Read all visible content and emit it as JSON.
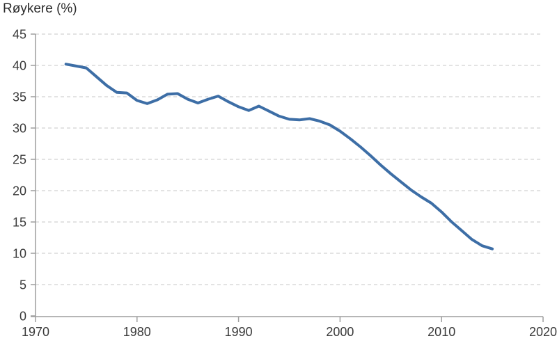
{
  "chart": {
    "title": "Røykere (%)"
  },
  "chart_data": {
    "type": "line",
    "title": "Røykere (%)",
    "xlabel": "",
    "ylabel": "Røykere (%)",
    "legend": "none",
    "grid": "horizontal-dashed",
    "xlim": [
      1970,
      2020
    ],
    "ylim": [
      0,
      45
    ],
    "x_ticks": [
      1970,
      1980,
      1990,
      2000,
      2010,
      2020
    ],
    "y_ticks": [
      0,
      5,
      10,
      15,
      20,
      25,
      30,
      35,
      40,
      45
    ],
    "series_name": "Røykere (%)",
    "x": [
      1973,
      1974,
      1975,
      1976,
      1977,
      1978,
      1979,
      1980,
      1981,
      1982,
      1983,
      1984,
      1985,
      1986,
      1987,
      1988,
      1989,
      1990,
      1991,
      1992,
      1993,
      1994,
      1995,
      1996,
      1997,
      1998,
      1999,
      2000,
      2001,
      2002,
      2003,
      2004,
      2005,
      2006,
      2007,
      2008,
      2009,
      2010,
      2011,
      2012,
      2013,
      2014,
      2015
    ],
    "values": [
      40.2,
      39.9,
      39.6,
      38.2,
      36.8,
      35.7,
      35.6,
      34.4,
      33.9,
      34.5,
      35.4,
      35.5,
      34.6,
      34.0,
      34.6,
      35.1,
      34.2,
      33.4,
      32.8,
      33.5,
      32.7,
      31.9,
      31.4,
      31.3,
      31.5,
      31.1,
      30.5,
      29.5,
      28.3,
      27.0,
      25.6,
      24.1,
      22.7,
      21.4,
      20.1,
      19.0,
      18.0,
      16.6,
      15.0,
      13.6,
      12.2,
      11.2,
      10.7
    ],
    "colors": {
      "line": "#3d6ea6",
      "grid": "#d2d2d2",
      "axis": "#9e9e9e",
      "tick_text": "#3a3a3a",
      "title_text": "#2b2b2b",
      "background": "#ffffff"
    }
  }
}
